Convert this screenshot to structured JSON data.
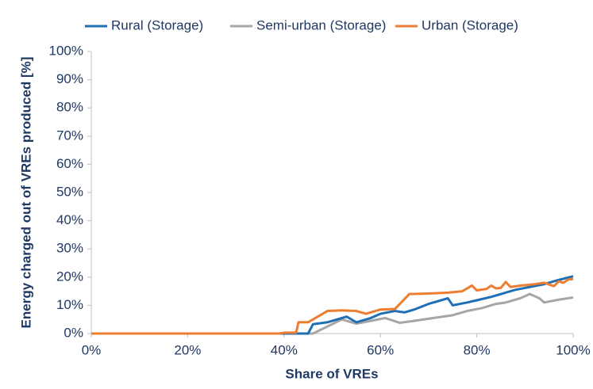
{
  "chart_data": {
    "type": "line",
    "x_label": "Share of VREs",
    "y_label": "Energy charged out of VREs produced [%]",
    "xlim": [
      0,
      100
    ],
    "ylim": [
      0,
      100
    ],
    "xticks": [
      {
        "value": 0,
        "label": "0%"
      },
      {
        "value": 20,
        "label": "20%"
      },
      {
        "value": 40,
        "label": "40%"
      },
      {
        "value": 60,
        "label": "60%"
      },
      {
        "value": 80,
        "label": "80%"
      },
      {
        "value": 100,
        "label": "100%"
      }
    ],
    "yticks": [
      {
        "value": 0,
        "label": "0%"
      },
      {
        "value": 10,
        "label": "10%"
      },
      {
        "value": 20,
        "label": "20%"
      },
      {
        "value": 30,
        "label": "30%"
      },
      {
        "value": 40,
        "label": "40%"
      },
      {
        "value": 50,
        "label": "50%"
      },
      {
        "value": 60,
        "label": "60%"
      },
      {
        "value": 70,
        "label": "70%"
      },
      {
        "value": 80,
        "label": "80%"
      },
      {
        "value": 90,
        "label": "90%"
      },
      {
        "value": 100,
        "label": "100%"
      }
    ],
    "legend": "top",
    "series": [
      {
        "name": "Rural (Storage)",
        "color": "#1f6fb5",
        "x": [
          0,
          45,
          46,
          49,
          52,
          53,
          55,
          58,
          60,
          63,
          65,
          67,
          70,
          74,
          75,
          78,
          80,
          83,
          85,
          88,
          91,
          94,
          97,
          100
        ],
        "values": [
          0,
          0,
          3.3,
          4,
          5.5,
          6,
          4,
          5.5,
          7,
          8,
          7.5,
          8.5,
          10.5,
          12.5,
          10,
          11,
          11.8,
          13,
          14,
          15.5,
          16.5,
          17.5,
          19,
          20.3
        ]
      },
      {
        "name": "Semi-urban (Storage)",
        "color": "#a6a6a6",
        "x": [
          0,
          46,
          49,
          52,
          55,
          58,
          61,
          64,
          67,
          71,
          75,
          78,
          81,
          84,
          86,
          89,
          91,
          93,
          94,
          97,
          100
        ],
        "values": [
          0,
          0,
          2.5,
          5,
          3.5,
          4.5,
          5.5,
          3.8,
          4.5,
          5.5,
          6.5,
          8,
          9,
          10.5,
          11,
          12.5,
          14,
          12.5,
          11,
          12,
          12.8
        ]
      },
      {
        "name": "Urban (Storage)",
        "color": "#ed7d31",
        "x": [
          0,
          39,
          40,
          42.5,
          43,
          45,
          49,
          52,
          55,
          57,
          60,
          63,
          66,
          70,
          74,
          77,
          79,
          80,
          82,
          83,
          84,
          85,
          86,
          87,
          89,
          92,
          94,
          96,
          97,
          98,
          99,
          100
        ],
        "values": [
          0,
          0,
          0.3,
          0.3,
          4,
          4,
          8,
          8.2,
          8,
          7,
          8.5,
          8.7,
          14,
          14.2,
          14.5,
          15,
          17,
          15.3,
          15.8,
          17,
          16,
          16.2,
          18.3,
          16.5,
          17,
          17.5,
          18,
          16.8,
          18.5,
          18,
          19.2,
          19.3
        ]
      }
    ]
  }
}
